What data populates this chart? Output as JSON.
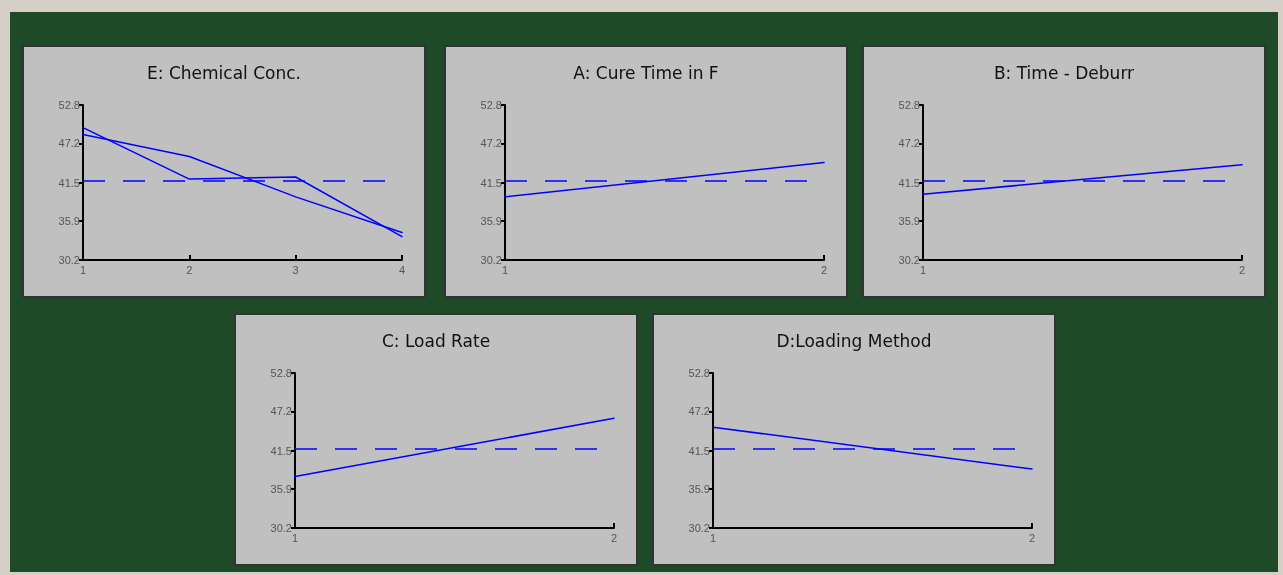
{
  "chart_data": [
    {
      "type": "line",
      "title": "E: Chemical Conc.",
      "x": [
        1,
        2,
        3,
        4
      ],
      "xlim": [
        1,
        4
      ],
      "xticks": [
        1,
        2,
        3,
        4
      ],
      "ylim": [
        30.2,
        52.8
      ],
      "yticks": [
        30.2,
        35.9,
        41.5,
        47.2,
        52.8
      ],
      "grid": false,
      "marker": "none",
      "line_style": "solid",
      "series": [
        {
          "color": "#0000ff",
          "values": [
            49.5,
            42.0,
            42.3,
            33.6
          ]
        },
        {
          "color": "#0000ff",
          "values": [
            48.5,
            45.3,
            39.4,
            34.2
          ]
        }
      ],
      "ref_lines": [
        {
          "axis": "y",
          "value": 41.7,
          "color": "#0000ff",
          "line_style": "dashed"
        }
      ]
    },
    {
      "type": "line",
      "title": "A: Cure Time in F",
      "x": [
        1,
        2
      ],
      "xlim": [
        1,
        2
      ],
      "xticks": [
        1,
        2
      ],
      "ylim": [
        30.2,
        52.8
      ],
      "yticks": [
        30.2,
        35.9,
        41.5,
        47.2,
        52.8
      ],
      "grid": false,
      "marker": "none",
      "line_style": "solid",
      "series": [
        {
          "color": "#0000ff",
          "values": [
            39.4,
            44.4
          ]
        }
      ],
      "ref_lines": [
        {
          "axis": "y",
          "value": 41.7,
          "color": "#0000ff",
          "line_style": "dashed"
        }
      ]
    },
    {
      "type": "line",
      "title": "B: Time - Deburr",
      "x": [
        1,
        2
      ],
      "xlim": [
        1,
        2
      ],
      "xticks": [
        1,
        2
      ],
      "ylim": [
        30.2,
        52.8
      ],
      "yticks": [
        30.2,
        35.9,
        41.5,
        47.2,
        52.8
      ],
      "grid": false,
      "marker": "none",
      "line_style": "solid",
      "series": [
        {
          "color": "#0000ff",
          "values": [
            39.8,
            44.1
          ]
        }
      ],
      "ref_lines": [
        {
          "axis": "y",
          "value": 41.7,
          "color": "#0000ff",
          "line_style": "dashed"
        }
      ]
    },
    {
      "type": "line",
      "title": "C: Load Rate",
      "x": [
        1,
        2
      ],
      "xlim": [
        1,
        2
      ],
      "xticks": [
        1,
        2
      ],
      "ylim": [
        30.2,
        52.8
      ],
      "yticks": [
        30.2,
        35.9,
        41.5,
        47.2,
        52.8
      ],
      "grid": false,
      "marker": "none",
      "line_style": "solid",
      "series": [
        {
          "color": "#0000ff",
          "values": [
            37.7,
            46.2
          ]
        }
      ],
      "ref_lines": [
        {
          "axis": "y",
          "value": 41.7,
          "color": "#0000ff",
          "line_style": "dashed"
        }
      ]
    },
    {
      "type": "line",
      "title": "D:Loading Method",
      "x": [
        1,
        2
      ],
      "xlim": [
        1,
        2
      ],
      "xticks": [
        1,
        2
      ],
      "ylim": [
        30.2,
        52.8
      ],
      "yticks": [
        30.2,
        35.9,
        41.5,
        47.2,
        52.8
      ],
      "grid": false,
      "marker": "none",
      "line_style": "solid",
      "series": [
        {
          "color": "#0000ff",
          "values": [
            44.9,
            38.8
          ]
        }
      ],
      "ref_lines": [
        {
          "axis": "y",
          "value": 41.7,
          "color": "#0000ff",
          "line_style": "dashed"
        }
      ]
    }
  ]
}
